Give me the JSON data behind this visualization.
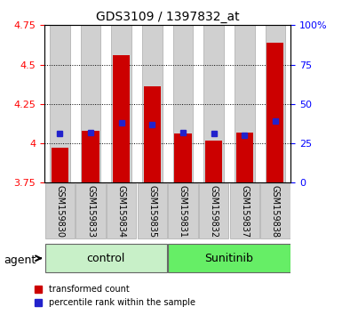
{
  "title": "GDS3109 / 1397832_at",
  "categories": [
    "GSM159830",
    "GSM159833",
    "GSM159834",
    "GSM159835",
    "GSM159831",
    "GSM159832",
    "GSM159837",
    "GSM159838"
  ],
  "groups": [
    {
      "label": "control",
      "indices": [
        0,
        1,
        2,
        3
      ],
      "color": "#c8f0c8"
    },
    {
      "label": "Sunitinib",
      "indices": [
        4,
        5,
        6,
        7
      ],
      "color": "#66ee66"
    }
  ],
  "bar_baseline": 3.75,
  "red_values": [
    3.97,
    4.08,
    4.56,
    4.36,
    4.06,
    4.02,
    4.07,
    4.64
  ],
  "blue_values": [
    4.06,
    4.07,
    4.13,
    4.12,
    4.07,
    4.06,
    4.05,
    4.14
  ],
  "ylim_left": [
    3.75,
    4.75
  ],
  "ylim_right": [
    0,
    100
  ],
  "yticks_left": [
    3.75,
    4.0,
    4.25,
    4.5,
    4.75
  ],
  "yticks_right": [
    0,
    25,
    50,
    75,
    100
  ],
  "ytick_labels_left": [
    "3.75",
    "4",
    "4.25",
    "4.5",
    "4.75"
  ],
  "ytick_labels_right": [
    "0",
    "25",
    "50",
    "75",
    "100%"
  ],
  "grid_values": [
    4.0,
    4.25,
    4.5
  ],
  "bar_color": "#cc0000",
  "blue_color": "#2222cc",
  "bar_width": 0.55,
  "background_color": "#ffffff",
  "bar_bg_color": "#d0d0d0",
  "legend_red_label": "transformed count",
  "legend_blue_label": "percentile rank within the sample"
}
